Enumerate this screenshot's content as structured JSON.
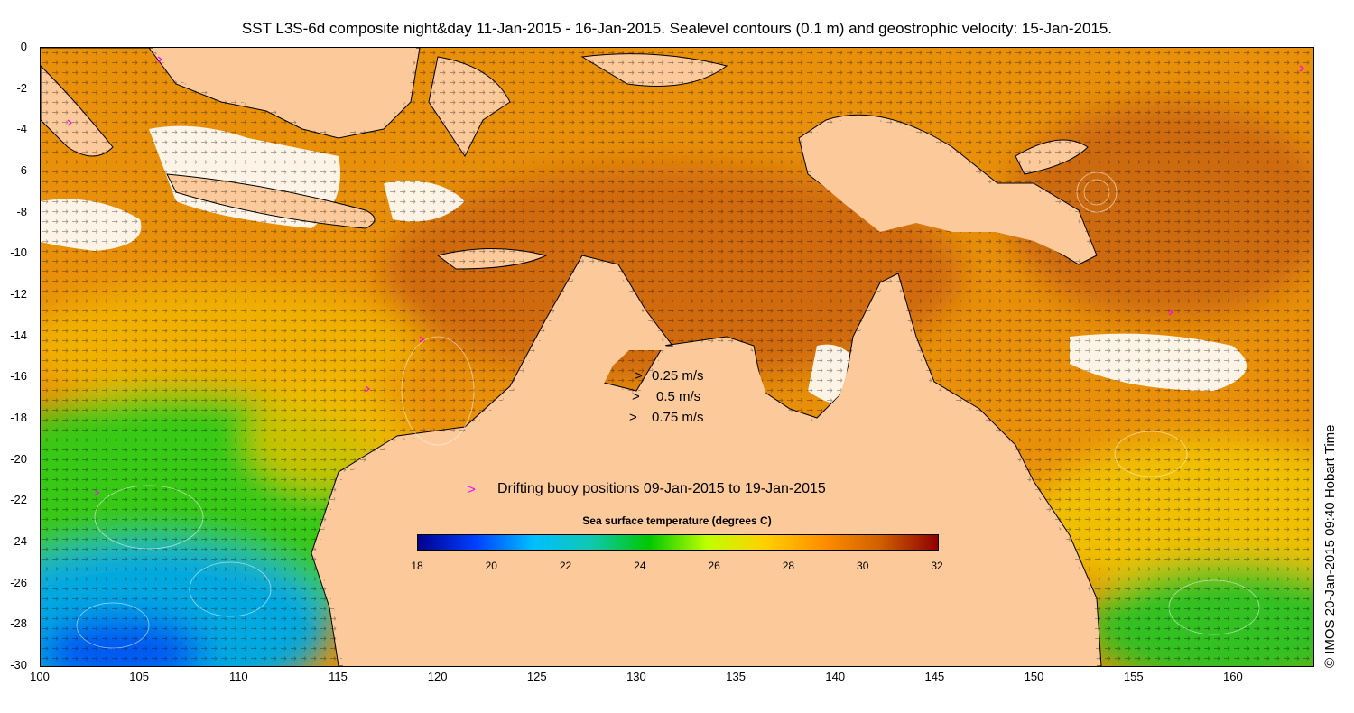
{
  "title": "SST L3S-6d composite night&day 11-Jan-2015 - 16-Jan-2015. Sealevel contours (0.1 m) and geostrophic velocity: 15-Jan-2015.",
  "credit": "© IMOS 20-Jan-2015 09:40 Hobart Time",
  "axes": {
    "x_ticks": [
      "100",
      "105",
      "110",
      "115",
      "120",
      "125",
      "130",
      "135",
      "140",
      "145",
      "150",
      "155",
      "160"
    ],
    "y_ticks": [
      "0",
      "-2",
      "-4",
      "-6",
      "-8",
      "-10",
      "-12",
      "-14",
      "-16",
      "-18",
      "-20",
      "-22",
      "-24",
      "-26",
      "-28",
      "-30"
    ],
    "xlim": [
      100,
      164
    ],
    "ylim": [
      -30,
      0
    ]
  },
  "velocity_legend": [
    {
      "label": "0.25 m/s",
      "marker": ">"
    },
    {
      "label": "0.5 m/s",
      "marker": ">"
    },
    {
      "label": "0.75 m/s",
      "marker": ">"
    }
  ],
  "buoy_legend": {
    "marker": ">",
    "label": "Drifting buoy positions 09-Jan-2015 to 19-Jan-2015",
    "color": "#ff00ff"
  },
  "colorbar": {
    "title": "Sea surface temperature (degrees C)",
    "ticks": [
      "18",
      "20",
      "22",
      "24",
      "26",
      "28",
      "30",
      "32"
    ],
    "range": [
      18,
      32
    ],
    "colors": [
      "#00008f",
      "#0040ff",
      "#00bfff",
      "#10c8b0",
      "#00c800",
      "#bfff00",
      "#ffd000",
      "#ff9000",
      "#d06000",
      "#900000"
    ]
  },
  "map_colors": {
    "land": "#fbc99a",
    "warm_water": "#e8900a",
    "hot_water": "#c86014",
    "mid_water": "#f0b800",
    "green_water": "#38c818",
    "cool_water": "#00a8e0",
    "cloud": "#ffffff"
  }
}
